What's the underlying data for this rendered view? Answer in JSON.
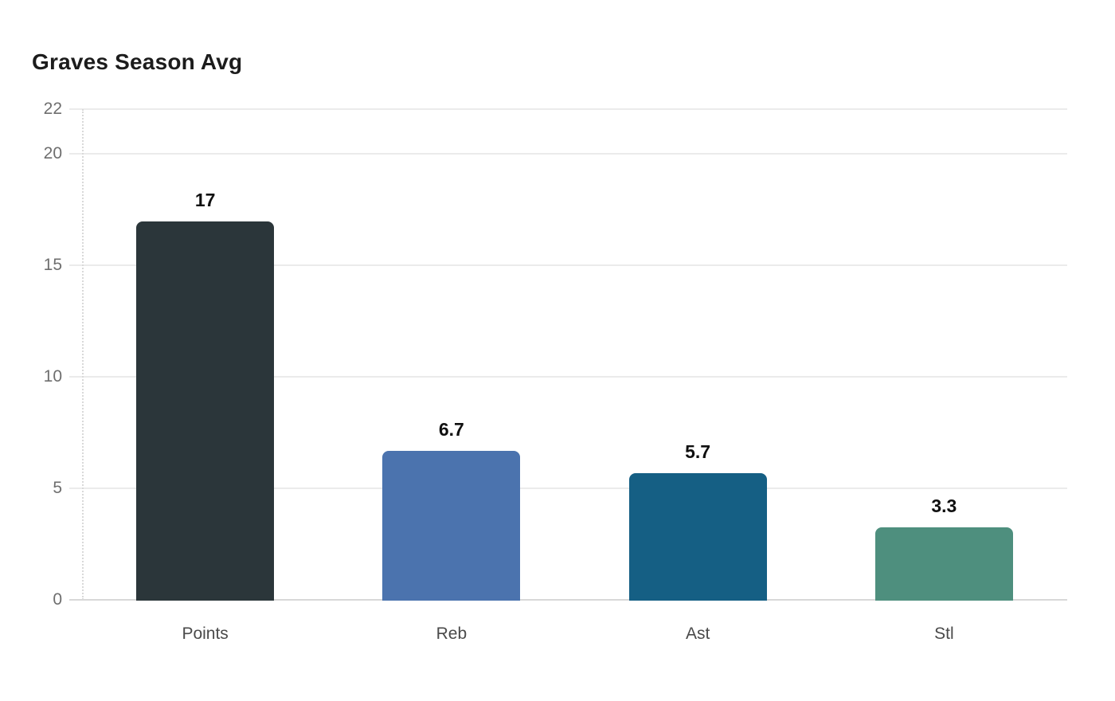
{
  "chart_data": {
    "type": "bar",
    "title": "Graves Season Avg",
    "categories": [
      "Points",
      "Reb",
      "Ast",
      "Stl"
    ],
    "values": [
      17,
      6.7,
      5.7,
      3.3
    ],
    "value_labels": [
      "17",
      "6.7",
      "5.7",
      "3.3"
    ],
    "bar_colors": [
      "#2b363a",
      "#4b73ae",
      "#155f84",
      "#4e8f7e"
    ],
    "yticks": [
      0,
      5,
      10,
      15,
      20,
      22
    ],
    "ytick_labels": [
      "0",
      "5",
      "10",
      "15",
      "20",
      "22"
    ],
    "ylim": [
      0,
      22
    ],
    "xlabel": "",
    "ylabel": "",
    "grid": true,
    "legend": false,
    "colors": {
      "background": "#ffffff",
      "title_text": "#1c1c1c",
      "value_label_text": "#101010",
      "ytick_label_text": "#6e6e6e",
      "xtick_label_text": "#4a4a4a",
      "gridline": "#ebebeb",
      "baseline": "#d8d8d8",
      "axis_dotted_line": "#d9d9d9"
    }
  }
}
